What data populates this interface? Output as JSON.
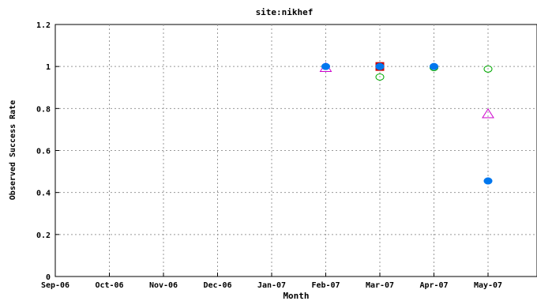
{
  "chart_data": {
    "type": "scatter",
    "title": "site:nikhef",
    "xlabel": "Month",
    "ylabel": "Observed Success Rate",
    "categories": [
      "Sep-06",
      "Oct-06",
      "Nov-06",
      "Dec-06",
      "Jan-07",
      "Feb-07",
      "Mar-07",
      "Apr-07",
      "May-07"
    ],
    "xlim": [
      0,
      9
    ],
    "ylim": [
      0,
      1.2
    ],
    "yticks": [
      "0",
      "0.2",
      "0.4",
      "0.6",
      "0.8",
      "1",
      "1.2"
    ],
    "grid": true,
    "series": [
      {
        "marker": "triangle",
        "color": "#cc00cc",
        "filled": false,
        "points": [
          {
            "x": "Feb-07",
            "y": 0.995
          },
          {
            "x": "May-07",
            "y": 0.775
          }
        ]
      },
      {
        "marker": "square",
        "color": "#cc0000",
        "filled": true,
        "points": [
          {
            "x": "Mar-07",
            "y": 1.0
          }
        ]
      },
      {
        "marker": "circle",
        "color": "#00aa00",
        "filled": false,
        "points": [
          {
            "x": "Mar-07",
            "y": 0.95
          },
          {
            "x": "Apr-07",
            "y": 0.995
          },
          {
            "x": "May-07",
            "y": 0.988
          }
        ]
      },
      {
        "marker": "circle",
        "color": "#0077ee",
        "filled": true,
        "points": [
          {
            "x": "Feb-07",
            "y": 1.0
          },
          {
            "x": "Mar-07",
            "y": 1.0
          },
          {
            "x": "Apr-07",
            "y": 1.0
          },
          {
            "x": "May-07",
            "y": 0.455
          }
        ]
      }
    ]
  }
}
